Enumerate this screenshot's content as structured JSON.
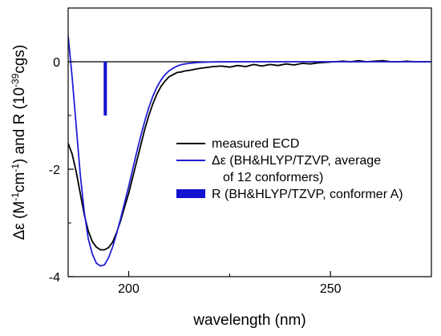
{
  "chart_data": {
    "type": "line",
    "title": "",
    "xlabel": "wavelength (nm)",
    "ylabel": {
      "parts": [
        "Δε (M",
        "-1",
        "cm",
        "-1",
        ") and R (10",
        "-39",
        "cgs)"
      ]
    },
    "xlim": [
      185,
      275
    ],
    "ylim": [
      -4,
      1.0
    ],
    "x_ticks": [
      200,
      250
    ],
    "y_ticks": [
      0,
      -2,
      -4
    ],
    "x_tick_labels": [
      "200",
      "250"
    ],
    "y_tick_labels": [
      "0",
      "-2",
      "-4"
    ],
    "grid": false,
    "legend_position": "center-right",
    "zero_line": true,
    "series": [
      {
        "name": "measured ECD",
        "color": "#000000",
        "x": [
          185,
          186,
          187,
          188,
          189,
          190,
          191,
          192,
          193,
          194,
          195,
          196,
          197,
          198,
          199,
          200,
          201,
          202,
          203,
          204,
          205,
          206,
          207,
          208,
          209,
          210,
          211,
          212,
          213,
          214,
          215,
          217,
          219,
          221,
          223,
          225,
          227,
          229,
          231,
          233,
          235,
          237,
          239,
          241,
          243,
          245,
          247,
          249,
          251,
          253,
          255,
          257,
          259,
          261,
          263,
          265,
          267,
          269,
          271,
          273,
          275
        ],
        "y": [
          -1.52,
          -1.72,
          -2.05,
          -2.45,
          -2.85,
          -3.15,
          -3.35,
          -3.45,
          -3.5,
          -3.5,
          -3.46,
          -3.36,
          -3.18,
          -2.96,
          -2.7,
          -2.45,
          -2.15,
          -1.85,
          -1.55,
          -1.25,
          -1.0,
          -0.78,
          -0.6,
          -0.46,
          -0.36,
          -0.28,
          -0.24,
          -0.2,
          -0.19,
          -0.17,
          -0.16,
          -0.13,
          -0.11,
          -0.09,
          -0.08,
          -0.1,
          -0.07,
          -0.09,
          -0.05,
          -0.08,
          -0.05,
          -0.07,
          -0.04,
          -0.06,
          -0.03,
          -0.04,
          -0.02,
          -0.01,
          0.0,
          0.01,
          0.0,
          0.02,
          0.0,
          0.01,
          0.02,
          0.0,
          0.0,
          0.01,
          0.0,
          0.0,
          0.0
        ]
      },
      {
        "name": "Δε (BH&HLYP/TZVP, average of 12 conformers)",
        "color": "#1f1fd6",
        "x": [
          185,
          186,
          187,
          188,
          189,
          190,
          191,
          192,
          193,
          194,
          195,
          196,
          197,
          198,
          199,
          200,
          201,
          202,
          203,
          204,
          205,
          206,
          207,
          208,
          209,
          210,
          211,
          212,
          213,
          214,
          215,
          216,
          217,
          218,
          220,
          222,
          225,
          230,
          240,
          250,
          260,
          275
        ],
        "y": [
          0.48,
          -0.3,
          -1.2,
          -2.1,
          -2.8,
          -3.3,
          -3.58,
          -3.75,
          -3.8,
          -3.78,
          -3.65,
          -3.45,
          -3.2,
          -2.92,
          -2.62,
          -2.32,
          -2.0,
          -1.68,
          -1.38,
          -1.1,
          -0.85,
          -0.64,
          -0.47,
          -0.34,
          -0.24,
          -0.17,
          -0.12,
          -0.08,
          -0.055,
          -0.04,
          -0.03,
          -0.022,
          -0.015,
          -0.01,
          -0.006,
          -0.003,
          -0.001,
          0.0,
          0.0,
          0.0,
          0.0,
          0.0
        ]
      }
    ],
    "bars": [
      {
        "name": "R (BH&HLYP/TZVP, conformer A)",
        "color": "#1212d0",
        "x": 194.2,
        "value": -1.0
      }
    ],
    "legend": [
      {
        "kind": "line",
        "color": "#000000",
        "lines": [
          "measured ECD"
        ]
      },
      {
        "kind": "line",
        "color": "#1f1fd6",
        "lines": [
          "Δε (BH&HLYP/TZVP, average",
          "of 12 conformers)"
        ]
      },
      {
        "kind": "bar",
        "color": "#1212d0",
        "lines": [
          "R (BH&HLYP/TZVP, conformer A)"
        ]
      }
    ]
  }
}
